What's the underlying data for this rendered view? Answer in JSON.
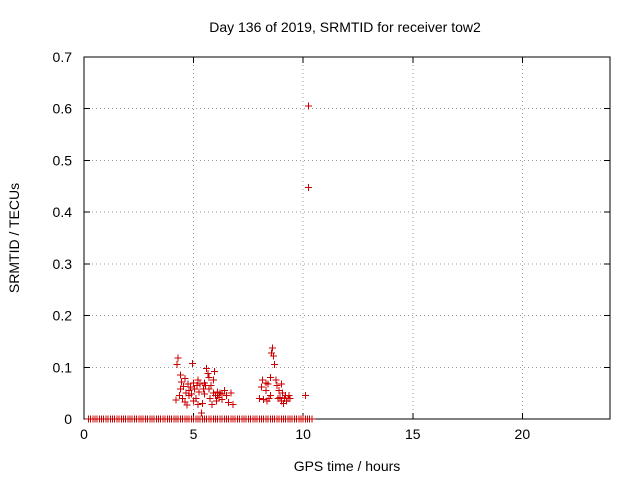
{
  "chart_data": {
    "type": "scatter",
    "title": "Day 136 of 2019, SRMTID for receiver tow2",
    "xlabel": "GPS time / hours",
    "ylabel": "SRMTID / TECUs",
    "xlim": [
      0,
      24
    ],
    "ylim": [
      0,
      0.7
    ],
    "x_ticks": [
      0,
      5,
      10,
      15,
      20
    ],
    "y_ticks": [
      0,
      0.1,
      0.2,
      0.3,
      0.4,
      0.5,
      0.6,
      0.7
    ],
    "x_tick_labels": [
      "0",
      "5",
      "10",
      "15",
      "20"
    ],
    "y_tick_labels": [
      "0",
      "0.1",
      "0.2",
      "0.3",
      "0.4",
      "0.5",
      "0.6",
      "0.7"
    ],
    "grid": true,
    "marker": "plus",
    "color": "#cc0000",
    "series": [
      {
        "name": "SRMTID",
        "points": [
          [
            0.2,
            0
          ],
          [
            0.3,
            0
          ],
          [
            0.4,
            0
          ],
          [
            0.5,
            0
          ],
          [
            0.6,
            0
          ],
          [
            0.7,
            0
          ],
          [
            0.8,
            0
          ],
          [
            0.9,
            0
          ],
          [
            1.0,
            0
          ],
          [
            1.1,
            0
          ],
          [
            1.2,
            0
          ],
          [
            1.3,
            0
          ],
          [
            1.4,
            0
          ],
          [
            1.5,
            0
          ],
          [
            1.6,
            0
          ],
          [
            1.7,
            0
          ],
          [
            1.8,
            0
          ],
          [
            1.9,
            0
          ],
          [
            2.0,
            0
          ],
          [
            2.1,
            0
          ],
          [
            2.2,
            0
          ],
          [
            2.3,
            0
          ],
          [
            2.4,
            0
          ],
          [
            2.5,
            0
          ],
          [
            2.6,
            0
          ],
          [
            2.7,
            0
          ],
          [
            2.8,
            0
          ],
          [
            2.9,
            0
          ],
          [
            3.0,
            0
          ],
          [
            3.1,
            0
          ],
          [
            3.2,
            0
          ],
          [
            3.3,
            0
          ],
          [
            3.4,
            0
          ],
          [
            3.5,
            0
          ],
          [
            3.6,
            0
          ],
          [
            3.7,
            0
          ],
          [
            3.8,
            0
          ],
          [
            3.9,
            0
          ],
          [
            4.0,
            0
          ],
          [
            4.1,
            0
          ],
          [
            4.2,
            0
          ],
          [
            4.3,
            0
          ],
          [
            4.4,
            0
          ],
          [
            4.5,
            0
          ],
          [
            4.6,
            0
          ],
          [
            4.7,
            0
          ],
          [
            4.8,
            0
          ],
          [
            4.9,
            0
          ],
          [
            5.0,
            0
          ],
          [
            5.1,
            0
          ],
          [
            5.2,
            0
          ],
          [
            5.3,
            0
          ],
          [
            5.4,
            0
          ],
          [
            5.5,
            0
          ],
          [
            5.6,
            0
          ],
          [
            5.7,
            0
          ],
          [
            5.8,
            0
          ],
          [
            5.9,
            0
          ],
          [
            6.0,
            0
          ],
          [
            6.1,
            0
          ],
          [
            6.2,
            0
          ],
          [
            6.3,
            0
          ],
          [
            6.4,
            0
          ],
          [
            6.5,
            0
          ],
          [
            6.6,
            0
          ],
          [
            6.7,
            0
          ],
          [
            6.8,
            0
          ],
          [
            6.9,
            0
          ],
          [
            7.0,
            0
          ],
          [
            7.1,
            0
          ],
          [
            7.2,
            0
          ],
          [
            7.3,
            0
          ],
          [
            7.4,
            0
          ],
          [
            7.5,
            0
          ],
          [
            7.6,
            0
          ],
          [
            7.7,
            0
          ],
          [
            7.8,
            0
          ],
          [
            7.9,
            0
          ],
          [
            8.0,
            0
          ],
          [
            8.1,
            0
          ],
          [
            8.2,
            0
          ],
          [
            8.3,
            0
          ],
          [
            8.4,
            0
          ],
          [
            8.5,
            0
          ],
          [
            8.6,
            0
          ],
          [
            8.7,
            0
          ],
          [
            8.8,
            0
          ],
          [
            8.9,
            0
          ],
          [
            9.0,
            0
          ],
          [
            9.1,
            0
          ],
          [
            9.2,
            0
          ],
          [
            9.3,
            0
          ],
          [
            9.4,
            0
          ],
          [
            9.5,
            0
          ],
          [
            9.6,
            0
          ],
          [
            9.7,
            0
          ],
          [
            9.8,
            0
          ],
          [
            9.9,
            0
          ],
          [
            10.0,
            0
          ],
          [
            10.1,
            0
          ],
          [
            10.2,
            0
          ],
          [
            10.3,
            0
          ],
          [
            10.4,
            0
          ],
          [
            4.2,
            0.037
          ],
          [
            4.25,
            0.105
          ],
          [
            4.3,
            0.118
          ],
          [
            4.35,
            0.045
          ],
          [
            4.4,
            0.058
          ],
          [
            4.45,
            0.072
          ],
          [
            4.5,
            0.04
          ],
          [
            4.55,
            0.063
          ],
          [
            4.6,
            0.033
          ],
          [
            4.65,
            0.05
          ],
          [
            4.7,
            0.027
          ],
          [
            4.75,
            0.068
          ],
          [
            4.8,
            0.055
          ],
          [
            4.85,
            0.062
          ],
          [
            4.9,
            0.048
          ],
          [
            4.95,
            0.107
          ],
          [
            5.0,
            0.07
          ],
          [
            5.05,
            0.058
          ],
          [
            5.1,
            0.04
          ],
          [
            5.15,
            0.065
          ],
          [
            5.2,
            0.075
          ],
          [
            5.25,
            0.052
          ],
          [
            5.3,
            0.068
          ],
          [
            5.35,
            0.012
          ],
          [
            5.4,
            0.03
          ],
          [
            5.45,
            0.058
          ],
          [
            5.5,
            0.048
          ],
          [
            5.55,
            0.065
          ],
          [
            5.6,
            0.098
          ],
          [
            5.65,
            0.088
          ],
          [
            5.7,
            0.08
          ],
          [
            5.75,
            0.04
          ],
          [
            5.8,
            0.065
          ],
          [
            5.85,
            0.028
          ],
          [
            5.9,
            0.075
          ],
          [
            5.95,
            0.092
          ],
          [
            6.0,
            0.045
          ],
          [
            6.05,
            0.035
          ],
          [
            6.1,
            0.052
          ],
          [
            6.15,
            0.042
          ],
          [
            6.2,
            0.05
          ],
          [
            6.3,
            0.038
          ],
          [
            6.4,
            0.055
          ],
          [
            6.5,
            0.045
          ],
          [
            6.6,
            0.032
          ],
          [
            6.7,
            0.05
          ],
          [
            6.8,
            0.028
          ],
          [
            4.4,
            0.085
          ],
          [
            4.6,
            0.078
          ],
          [
            4.8,
            0.045
          ],
          [
            5.0,
            0.035
          ],
          [
            5.2,
            0.028
          ],
          [
            5.5,
            0.07
          ],
          [
            5.7,
            0.058
          ],
          [
            5.9,
            0.05
          ],
          [
            6.1,
            0.045
          ],
          [
            6.3,
            0.048
          ],
          [
            8.0,
            0.04
          ],
          [
            8.1,
            0.062
          ],
          [
            8.15,
            0.075
          ],
          [
            8.2,
            0.038
          ],
          [
            8.3,
            0.07
          ],
          [
            8.35,
            0.035
          ],
          [
            8.4,
            0.068
          ],
          [
            8.45,
            0.04
          ],
          [
            8.5,
            0.08
          ],
          [
            8.55,
            0.128
          ],
          [
            8.6,
            0.137
          ],
          [
            8.65,
            0.122
          ],
          [
            8.7,
            0.105
          ],
          [
            8.75,
            0.075
          ],
          [
            8.8,
            0.065
          ],
          [
            8.85,
            0.04
          ],
          [
            8.9,
            0.055
          ],
          [
            8.95,
            0.042
          ],
          [
            9.0,
            0.068
          ],
          [
            9.05,
            0.05
          ],
          [
            9.1,
            0.03
          ],
          [
            9.15,
            0.04
          ],
          [
            9.2,
            0.045
          ],
          [
            9.25,
            0.035
          ],
          [
            9.3,
            0.04
          ],
          [
            9.35,
            0.045
          ],
          [
            9.4,
            0.04
          ],
          [
            8.3,
            0.055
          ],
          [
            8.5,
            0.045
          ],
          [
            9.0,
            0.035
          ],
          [
            10.1,
            0.045
          ],
          [
            10.25,
            0.605
          ],
          [
            10.25,
            0.448
          ]
        ]
      }
    ]
  }
}
